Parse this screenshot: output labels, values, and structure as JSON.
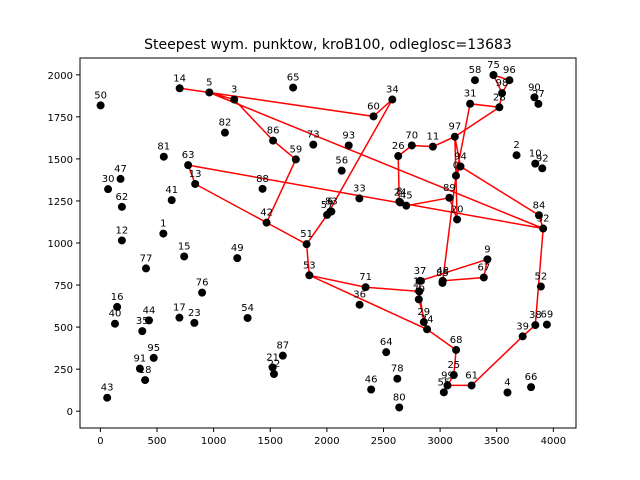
{
  "chart_data": {
    "type": "scatter",
    "title": "Steepest wym. punktow, kroB100, odleglosc=13683",
    "xlabel": "",
    "ylabel": "",
    "xlim": [
      -180,
      4200
    ],
    "ylim": [
      -100,
      2100
    ],
    "x_ticks": [
      0,
      500,
      1000,
      1500,
      2000,
      2500,
      3000,
      3500,
      4000
    ],
    "y_ticks": [
      0,
      250,
      500,
      750,
      1000,
      1250,
      1500,
      1750,
      2000
    ],
    "grid": false,
    "colors": {
      "points": "#000000",
      "path": "#ff0000"
    },
    "points": [
      {
        "id": "0",
        "x": 3140,
        "y": 1400
      },
      {
        "id": "1",
        "x": 556,
        "y": 1056
      },
      {
        "id": "2",
        "x": 3675,
        "y": 1522
      },
      {
        "id": "3",
        "x": 1182,
        "y": 1853
      },
      {
        "id": "4",
        "x": 3595,
        "y": 111
      },
      {
        "id": "5",
        "x": 962,
        "y": 1895
      },
      {
        "id": "6",
        "x": 2030,
        "y": 1186
      },
      {
        "id": "8",
        "x": 2640,
        "y": 1246
      },
      {
        "id": "9",
        "x": 3418,
        "y": 903
      },
      {
        "id": "10",
        "x": 3840,
        "y": 1472
      },
      {
        "id": "11",
        "x": 2936,
        "y": 1573
      },
      {
        "id": "12",
        "x": 190,
        "y": 1015
      },
      {
        "id": "13",
        "x": 837,
        "y": 1351
      },
      {
        "id": "14",
        "x": 700,
        "y": 1920
      },
      {
        "id": "15",
        "x": 740,
        "y": 920
      },
      {
        "id": "16",
        "x": 148,
        "y": 620
      },
      {
        "id": "17",
        "x": 698,
        "y": 556
      },
      {
        "id": "18",
        "x": 395,
        "y": 185
      },
      {
        "id": "19",
        "x": 2816,
        "y": 712
      },
      {
        "id": "20",
        "x": 3150,
        "y": 1140
      },
      {
        "id": "21",
        "x": 1521,
        "y": 260
      },
      {
        "id": "22",
        "x": 1533,
        "y": 221
      },
      {
        "id": "23",
        "x": 830,
        "y": 525
      },
      {
        "id": "24",
        "x": 2647,
        "y": 1241
      },
      {
        "id": "25",
        "x": 3121,
        "y": 215
      },
      {
        "id": "26",
        "x": 2630,
        "y": 1517
      },
      {
        "id": "27",
        "x": 3868,
        "y": 1827
      },
      {
        "id": "28",
        "x": 3523,
        "y": 1807
      },
      {
        "id": "29",
        "x": 2856,
        "y": 530
      },
      {
        "id": "30",
        "x": 68,
        "y": 1320
      },
      {
        "id": "31",
        "x": 3265,
        "y": 1828
      },
      {
        "id": "32",
        "x": 3910,
        "y": 1086
      },
      {
        "id": "33",
        "x": 2287,
        "y": 1265
      },
      {
        "id": "34",
        "x": 2578,
        "y": 1853
      },
      {
        "id": "35",
        "x": 370,
        "y": 476
      },
      {
        "id": "36",
        "x": 2289,
        "y": 633
      },
      {
        "id": "37",
        "x": 2823,
        "y": 775
      },
      {
        "id": "38",
        "x": 3841,
        "y": 512
      },
      {
        "id": "39",
        "x": 3729,
        "y": 445
      },
      {
        "id": "40",
        "x": 129,
        "y": 520
      },
      {
        "id": "41",
        "x": 630,
        "y": 1255
      },
      {
        "id": "42",
        "x": 1468,
        "y": 1121
      },
      {
        "id": "43",
        "x": 60,
        "y": 80
      },
      {
        "id": "44",
        "x": 429,
        "y": 540
      },
      {
        "id": "45",
        "x": 2701,
        "y": 1222
      },
      {
        "id": "46",
        "x": 2391,
        "y": 129
      },
      {
        "id": "47",
        "x": 178,
        "y": 1381
      },
      {
        "id": "48",
        "x": 3023,
        "y": 775
      },
      {
        "id": "49",
        "x": 1209,
        "y": 910
      },
      {
        "id": "50",
        "x": 2,
        "y": 1818
      },
      {
        "id": "51",
        "x": 1821,
        "y": 993
      },
      {
        "id": "52",
        "x": 3890,
        "y": 741
      },
      {
        "id": "53",
        "x": 1845,
        "y": 808
      },
      {
        "id": "54",
        "x": 1300,
        "y": 554
      },
      {
        "id": "55",
        "x": 3033,
        "y": 112
      },
      {
        "id": "56",
        "x": 2131,
        "y": 1430
      },
      {
        "id": "57",
        "x": 2002,
        "y": 1167
      },
      {
        "id": "58",
        "x": 3308,
        "y": 1968
      },
      {
        "id": "59",
        "x": 1726,
        "y": 1497
      },
      {
        "id": "60",
        "x": 2412,
        "y": 1753
      },
      {
        "id": "61",
        "x": 3278,
        "y": 153
      },
      {
        "id": "62",
        "x": 190,
        "y": 1215
      },
      {
        "id": "63",
        "x": 775,
        "y": 1463
      },
      {
        "id": "64",
        "x": 2524,
        "y": 351
      },
      {
        "id": "65",
        "x": 1702,
        "y": 1924
      },
      {
        "id": "66",
        "x": 3803,
        "y": 143
      },
      {
        "id": "67",
        "x": 3386,
        "y": 795
      },
      {
        "id": "68",
        "x": 3141,
        "y": 364
      },
      {
        "id": "69",
        "x": 3943,
        "y": 515
      },
      {
        "id": "70",
        "x": 2750,
        "y": 1580
      },
      {
        "id": "71",
        "x": 2342,
        "y": 737
      },
      {
        "id": "73",
        "x": 1880,
        "y": 1585
      },
      {
        "id": "74",
        "x": 2885,
        "y": 487
      },
      {
        "id": "75",
        "x": 3471,
        "y": 1999
      },
      {
        "id": "76",
        "x": 898,
        "y": 705
      },
      {
        "id": "77",
        "x": 403,
        "y": 849
      },
      {
        "id": "78",
        "x": 2622,
        "y": 193
      },
      {
        "id": "79",
        "x": 2812,
        "y": 665
      },
      {
        "id": "80",
        "x": 2639,
        "y": 22
      },
      {
        "id": "81",
        "x": 560,
        "y": 1513
      },
      {
        "id": "82",
        "x": 1100,
        "y": 1656
      },
      {
        "id": "83",
        "x": 2040,
        "y": 1187
      },
      {
        "id": "84",
        "x": 3873,
        "y": 1165
      },
      {
        "id": "85",
        "x": 3021,
        "y": 763
      },
      {
        "id": "86",
        "x": 1525,
        "y": 1609
      },
      {
        "id": "87",
        "x": 1611,
        "y": 330
      },
      {
        "id": "88",
        "x": 1432,
        "y": 1322
      },
      {
        "id": "89",
        "x": 3082,
        "y": 1269
      },
      {
        "id": "90",
        "x": 3833,
        "y": 1866
      },
      {
        "id": "91",
        "x": 349,
        "y": 253
      },
      {
        "id": "92",
        "x": 3902,
        "y": 1444
      },
      {
        "id": "93",
        "x": 2193,
        "y": 1580
      },
      {
        "id": "94",
        "x": 3180,
        "y": 1455
      },
      {
        "id": "95",
        "x": 471,
        "y": 317
      },
      {
        "id": "96",
        "x": 3612,
        "y": 1968
      },
      {
        "id": "97",
        "x": 3130,
        "y": 1632
      },
      {
        "id": "98",
        "x": 3547,
        "y": 1891
      },
      {
        "id": "99",
        "x": 3065,
        "y": 153
      }
    ],
    "path": [
      "14",
      "5",
      "3",
      "86",
      "59",
      "42",
      "51",
      "53",
      "71",
      "19",
      "79",
      "74",
      "68",
      "25",
      "99",
      "61",
      "39",
      "38",
      "32",
      "84",
      "94",
      "0",
      "20",
      "89",
      "45",
      "24",
      "8",
      "26",
      "70",
      "11",
      "97",
      "0",
      "31",
      "28",
      "98",
      "75",
      "96",
      "98",
      "28",
      "97",
      "94",
      "0",
      "85",
      "48",
      "67",
      "9",
      "37",
      "19",
      "29",
      "74",
      "53",
      "51",
      "57",
      "6",
      "83",
      "57",
      "34",
      "60",
      "5",
      "32",
      "63",
      "13",
      "42"
    ]
  }
}
